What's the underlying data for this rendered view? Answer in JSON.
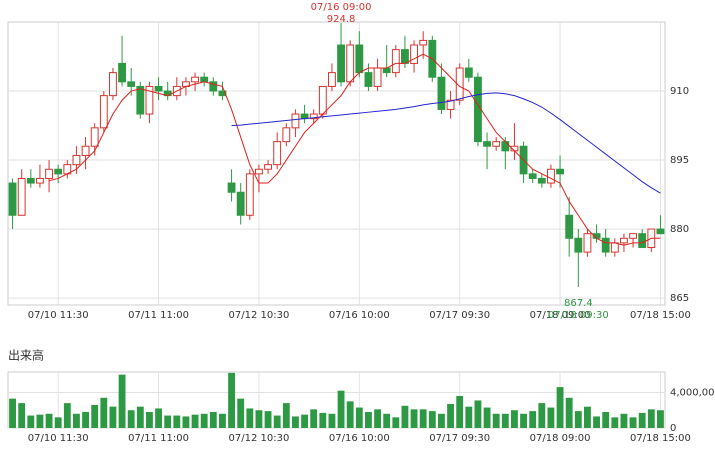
{
  "chart_data": [
    {
      "type": "candlestick",
      "categories": [
        null,
        null,
        null,
        null,
        null,
        "07/10 11:30",
        null,
        null,
        null,
        null,
        null,
        null,
        null,
        null,
        null,
        null,
        "07/11 11:00",
        null,
        null,
        null,
        null,
        null,
        null,
        null,
        null,
        null,
        null,
        "07/12 10:30",
        null,
        null,
        null,
        null,
        null,
        null,
        null,
        null,
        null,
        null,
        "07/16 10:00",
        null,
        null,
        null,
        null,
        null,
        null,
        null,
        null,
        null,
        null,
        "07/17 09:30",
        null,
        null,
        null,
        null,
        null,
        null,
        null,
        null,
        null,
        null,
        "07/18 09:00",
        null,
        null,
        null,
        null,
        null,
        null,
        null,
        null,
        null,
        null,
        "07/18 15:00"
      ],
      "open": [
        890,
        883,
        891,
        890,
        891,
        893,
        892,
        894,
        896,
        898,
        902,
        909,
        916,
        912,
        911,
        905,
        911,
        910,
        909,
        911,
        912,
        913,
        912,
        910,
        890,
        888,
        883,
        892,
        893,
        894,
        899,
        902,
        905,
        904,
        905,
        911,
        920,
        912,
        920,
        914,
        911,
        915,
        914,
        919,
        916,
        920,
        921,
        913,
        906,
        908,
        915,
        913,
        899,
        898,
        899,
        897,
        898,
        892,
        891,
        890,
        893,
        883,
        878,
        875,
        879,
        878,
        875,
        877,
        878,
        879,
        876,
        880
      ],
      "high": [
        891,
        893,
        893,
        894,
        895,
        894,
        895,
        898,
        900,
        903,
        910,
        915,
        922,
        915,
        912,
        912,
        913,
        912,
        913,
        913,
        914,
        914,
        913,
        912,
        893,
        890,
        893,
        894,
        895,
        901,
        903,
        906,
        907,
        906,
        911,
        916,
        924.8,
        921,
        923,
        916,
        917,
        920,
        920,
        922,
        921,
        923,
        922,
        916,
        910,
        916,
        917,
        914,
        901,
        900,
        900,
        903,
        899,
        893,
        892,
        894,
        896,
        887,
        880,
        880,
        881,
        880,
        878,
        879,
        879,
        880,
        880,
        883
      ],
      "low": [
        880,
        883,
        889,
        889,
        888,
        890,
        891,
        892,
        893,
        896,
        901,
        908,
        911,
        909,
        904,
        903,
        908,
        908,
        908,
        909,
        910,
        911,
        909,
        908,
        886,
        881,
        882,
        888,
        892,
        893,
        898,
        900,
        903,
        903,
        904,
        910,
        911,
        911,
        913,
        910,
        910,
        913,
        913,
        915,
        914,
        917,
        912,
        905,
        904,
        907,
        912,
        898,
        893,
        897,
        893,
        895,
        890,
        890,
        889,
        889,
        889,
        874,
        867.4,
        874,
        877,
        874,
        874,
        875,
        876,
        876,
        875,
        879
      ],
      "close": [
        883,
        891,
        890,
        891,
        893,
        892,
        894,
        896,
        898,
        902,
        909,
        914,
        912,
        911,
        905,
        911,
        910,
        909,
        911,
        912,
        913,
        912,
        910,
        909,
        888,
        883,
        892,
        893,
        894,
        899,
        902,
        905,
        904,
        905,
        911,
        914,
        912,
        920,
        914,
        911,
        915,
        914,
        919,
        916,
        920,
        921,
        913,
        906,
        908,
        915,
        913,
        899,
        898,
        899,
        897,
        898,
        892,
        891,
        890,
        893,
        892,
        878,
        875,
        879,
        878,
        875,
        877,
        878,
        879,
        876,
        880,
        879
      ],
      "up_color": "#d8332f",
      "down_color": "#2e9944",
      "series": [
        {
          "color": "#e0201c",
          "values": [
            null,
            null,
            null,
            null,
            890.5,
            891,
            892,
            893,
            895,
            897,
            901,
            905,
            908,
            910,
            910.5,
            910,
            909.5,
            909,
            910,
            911,
            911.5,
            912,
            911.5,
            911,
            906,
            900,
            894,
            890,
            890,
            892,
            895,
            898,
            901,
            903,
            905,
            907,
            909,
            912,
            914,
            915,
            915,
            915,
            916,
            916,
            917,
            918,
            917,
            915,
            913,
            911,
            910,
            907,
            904,
            901,
            899,
            897,
            895,
            893,
            892,
            891,
            890,
            886,
            883,
            880,
            878,
            877,
            877,
            876.5,
            877,
            877,
            878,
            878
          ]
        },
        {
          "color": "#2424d0",
          "values": [
            null,
            null,
            null,
            null,
            null,
            null,
            null,
            null,
            null,
            null,
            null,
            null,
            null,
            null,
            null,
            null,
            null,
            null,
            null,
            null,
            null,
            null,
            null,
            null,
            902.5,
            902.6,
            902.8,
            903,
            903.2,
            903.4,
            903.6,
            903.8,
            904,
            904.2,
            904.4,
            904.6,
            904.8,
            905,
            905.2,
            905.4,
            905.6,
            905.8,
            906,
            906.3,
            906.6,
            907,
            907.3,
            907.5,
            907.8,
            908.3,
            908.8,
            909.2,
            909.5,
            909.6,
            909.4,
            909,
            908.3,
            907.5,
            906.5,
            905.2,
            903.8,
            902.3,
            900.8,
            899.3,
            897.8,
            896.3,
            894.8,
            893.3,
            891.8,
            890.3,
            889,
            887.8
          ]
        }
      ],
      "ylim": [
        863.5,
        925
      ],
      "yticks": [
        865,
        880,
        895,
        910
      ],
      "grid": true,
      "high_annotation": "07/16 09:00",
      "low_annotation": "07/18 09:30"
    },
    {
      "type": "bar",
      "title": "出来高",
      "categories": [
        null,
        null,
        null,
        null,
        null,
        "07/10 11:30",
        null,
        null,
        null,
        null,
        null,
        null,
        null,
        null,
        null,
        null,
        "07/11 11:00",
        null,
        null,
        null,
        null,
        null,
        null,
        null,
        null,
        null,
        null,
        "07/12 10:30",
        null,
        null,
        null,
        null,
        null,
        null,
        null,
        null,
        null,
        null,
        "07/16 10:00",
        null,
        null,
        null,
        null,
        null,
        null,
        null,
        null,
        null,
        null,
        "07/17 09:30",
        null,
        null,
        null,
        null,
        null,
        null,
        null,
        null,
        null,
        null,
        "07/18 09:00",
        null,
        null,
        null,
        null,
        null,
        null,
        null,
        null,
        null,
        null,
        "07/18 15:00"
      ],
      "values": [
        3300000,
        2800000,
        1400000,
        1500000,
        1600000,
        1200000,
        2800000,
        1600000,
        1800000,
        2600000,
        3400000,
        2400000,
        6000000,
        2000000,
        2400000,
        1800000,
        2200000,
        1400000,
        1400000,
        1300000,
        1500000,
        1600000,
        1800000,
        1600000,
        6200000,
        3300000,
        2200000,
        2000000,
        1900000,
        1400000,
        2800000,
        1300000,
        1500000,
        2100000,
        1700000,
        1600000,
        4200000,
        3000000,
        2300000,
        1800000,
        2100000,
        1600000,
        1200000,
        2500000,
        2100000,
        2100000,
        1900000,
        1600000,
        2700000,
        3600000,
        2400000,
        3100000,
        2300000,
        1600000,
        1600000,
        2000000,
        1600000,
        1900000,
        2800000,
        2300000,
        4600000,
        3400000,
        1900000,
        2400000,
        1300000,
        1800000,
        1200000,
        1600000,
        1200000,
        1700000,
        2100000,
        2000000
      ],
      "color": "#2e9944",
      "ylim": [
        0,
        6300000
      ],
      "yticks": [
        0,
        {
          "value": 4000000,
          "label": "4,000,000"
        }
      ],
      "grid": true
    }
  ]
}
